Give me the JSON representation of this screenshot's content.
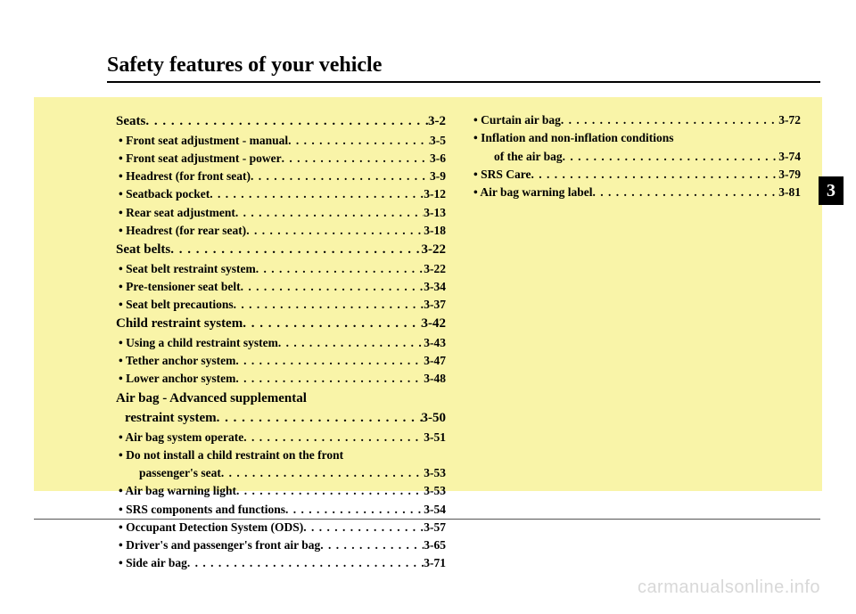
{
  "title": "Safety features of your vehicle",
  "chapter": "3",
  "watermark": "carmanualsonline.info",
  "col1": [
    {
      "type": "section",
      "label": "Seats",
      "page": "3-2"
    },
    {
      "type": "sub",
      "label": "• Front seat adjustment - manual",
      "page": "3-5"
    },
    {
      "type": "sub",
      "label": "• Front seat adjustment - power",
      "page": "3-6"
    },
    {
      "type": "sub",
      "label": "• Headrest (for front seat)",
      "page": "3-9"
    },
    {
      "type": "sub",
      "label": "• Seatback pocket",
      "page": "3-12"
    },
    {
      "type": "sub",
      "label": "• Rear seat adjustment ",
      "page": "3-13"
    },
    {
      "type": "sub",
      "label": "• Headrest (for rear seat)",
      "page": "3-18"
    },
    {
      "type": "section",
      "label": "Seat belts ",
      "page": "3-22"
    },
    {
      "type": "sub",
      "label": "• Seat belt restraint system",
      "page": "3-22"
    },
    {
      "type": "sub",
      "label": "• Pre-tensioner seat belt",
      "page": "3-34"
    },
    {
      "type": "sub",
      "label": "• Seat belt precautions",
      "page": "3-37"
    },
    {
      "type": "section",
      "label": "Child restraint system ",
      "page": "3-42"
    },
    {
      "type": "sub",
      "label": "• Using a child restraint system ",
      "page": "3-43"
    },
    {
      "type": "sub",
      "label": "• Tether anchor system ",
      "page": "3-47"
    },
    {
      "type": "sub",
      "label": "• Lower anchor system ",
      "page": "3-48"
    },
    {
      "type": "section-nopage",
      "label": "Air bag - Advanced supplemental"
    },
    {
      "type": "section-cont",
      "label": "restraint system",
      "page": "3-50"
    },
    {
      "type": "sub",
      "label": "• Air bag system operate  ",
      "page": "3-51"
    },
    {
      "type": "sub-nopage",
      "label": "• Do not install a child restraint on the front"
    },
    {
      "type": "sub2",
      "label": "passenger's seat",
      "page": "3-53"
    },
    {
      "type": "sub",
      "label": "• Air bag warning light",
      "page": "3-53"
    },
    {
      "type": "sub",
      "label": "• SRS components and functions",
      "page": "3-54"
    },
    {
      "type": "sub",
      "label": "• Occupant Detection System (ODS)",
      "page": "3-57"
    },
    {
      "type": "sub",
      "label": "• Driver's and passenger's front air bag",
      "page": "3-65"
    },
    {
      "type": "sub",
      "label": "• Side air bag ",
      "page": "3-71"
    }
  ],
  "col2": [
    {
      "type": "sub",
      "label": "• Curtain air bag ",
      "page": "3-72"
    },
    {
      "type": "sub-nopage",
      "label": "• Inflation and non-inflation conditions"
    },
    {
      "type": "sub2",
      "label": "of the air bag",
      "page": "3-74"
    },
    {
      "type": "sub",
      "label": "• SRS Care ",
      "page": "3-79"
    },
    {
      "type": "sub",
      "label": "• Air bag warning label",
      "page": "3-81"
    }
  ]
}
